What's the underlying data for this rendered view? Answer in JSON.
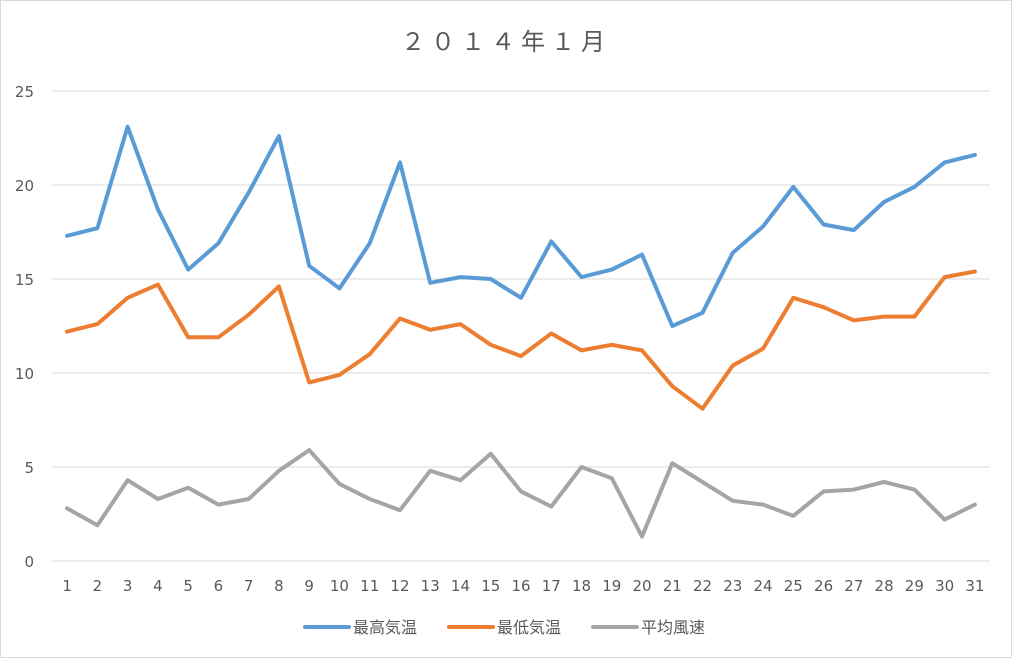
{
  "chart_data": {
    "type": "line",
    "title": "２０１４年１月",
    "xlabel": "",
    "ylabel": "",
    "ylim": [
      0,
      25
    ],
    "yticks": [
      0,
      5,
      10,
      15,
      20,
      25
    ],
    "grid": true,
    "legend_position": "bottom",
    "categories": [
      "1",
      "2",
      "3",
      "4",
      "5",
      "6",
      "7",
      "8",
      "9",
      "10",
      "11",
      "12",
      "13",
      "14",
      "15",
      "16",
      "17",
      "18",
      "19",
      "20",
      "21",
      "22",
      "23",
      "24",
      "25",
      "26",
      "27",
      "28",
      "29",
      "30",
      "31"
    ],
    "series": [
      {
        "name": "最高気温",
        "color": "#5b9bd5",
        "values": [
          17.3,
          17.7,
          23.1,
          18.7,
          15.5,
          16.9,
          19.6,
          22.6,
          15.7,
          14.5,
          16.9,
          21.2,
          14.8,
          15.1,
          15.0,
          14.0,
          17.0,
          15.1,
          15.5,
          16.3,
          12.5,
          13.2,
          16.4,
          17.8,
          19.9,
          17.9,
          17.6,
          19.1,
          19.9,
          21.2,
          21.6
        ]
      },
      {
        "name": "最低気温",
        "color": "#ed7d31",
        "values": [
          12.2,
          12.6,
          14.0,
          14.7,
          11.9,
          11.9,
          13.1,
          14.6,
          9.5,
          9.9,
          11.0,
          12.9,
          12.3,
          12.6,
          11.5,
          10.9,
          12.1,
          11.2,
          11.5,
          11.2,
          9.3,
          8.1,
          10.4,
          11.3,
          14.0,
          13.5,
          12.8,
          13.0,
          13.0,
          15.1,
          15.4
        ]
      },
      {
        "name": "平均風速",
        "color": "#a5a5a5",
        "values": [
          2.8,
          1.9,
          4.3,
          3.3,
          3.9,
          3.0,
          3.3,
          4.8,
          5.9,
          4.1,
          3.3,
          2.7,
          4.8,
          4.3,
          5.7,
          3.7,
          2.9,
          5.0,
          4.4,
          1.3,
          5.2,
          4.2,
          3.2,
          3.0,
          2.4,
          3.7,
          3.8,
          4.2,
          3.8,
          2.2,
          3.0
        ]
      }
    ]
  }
}
